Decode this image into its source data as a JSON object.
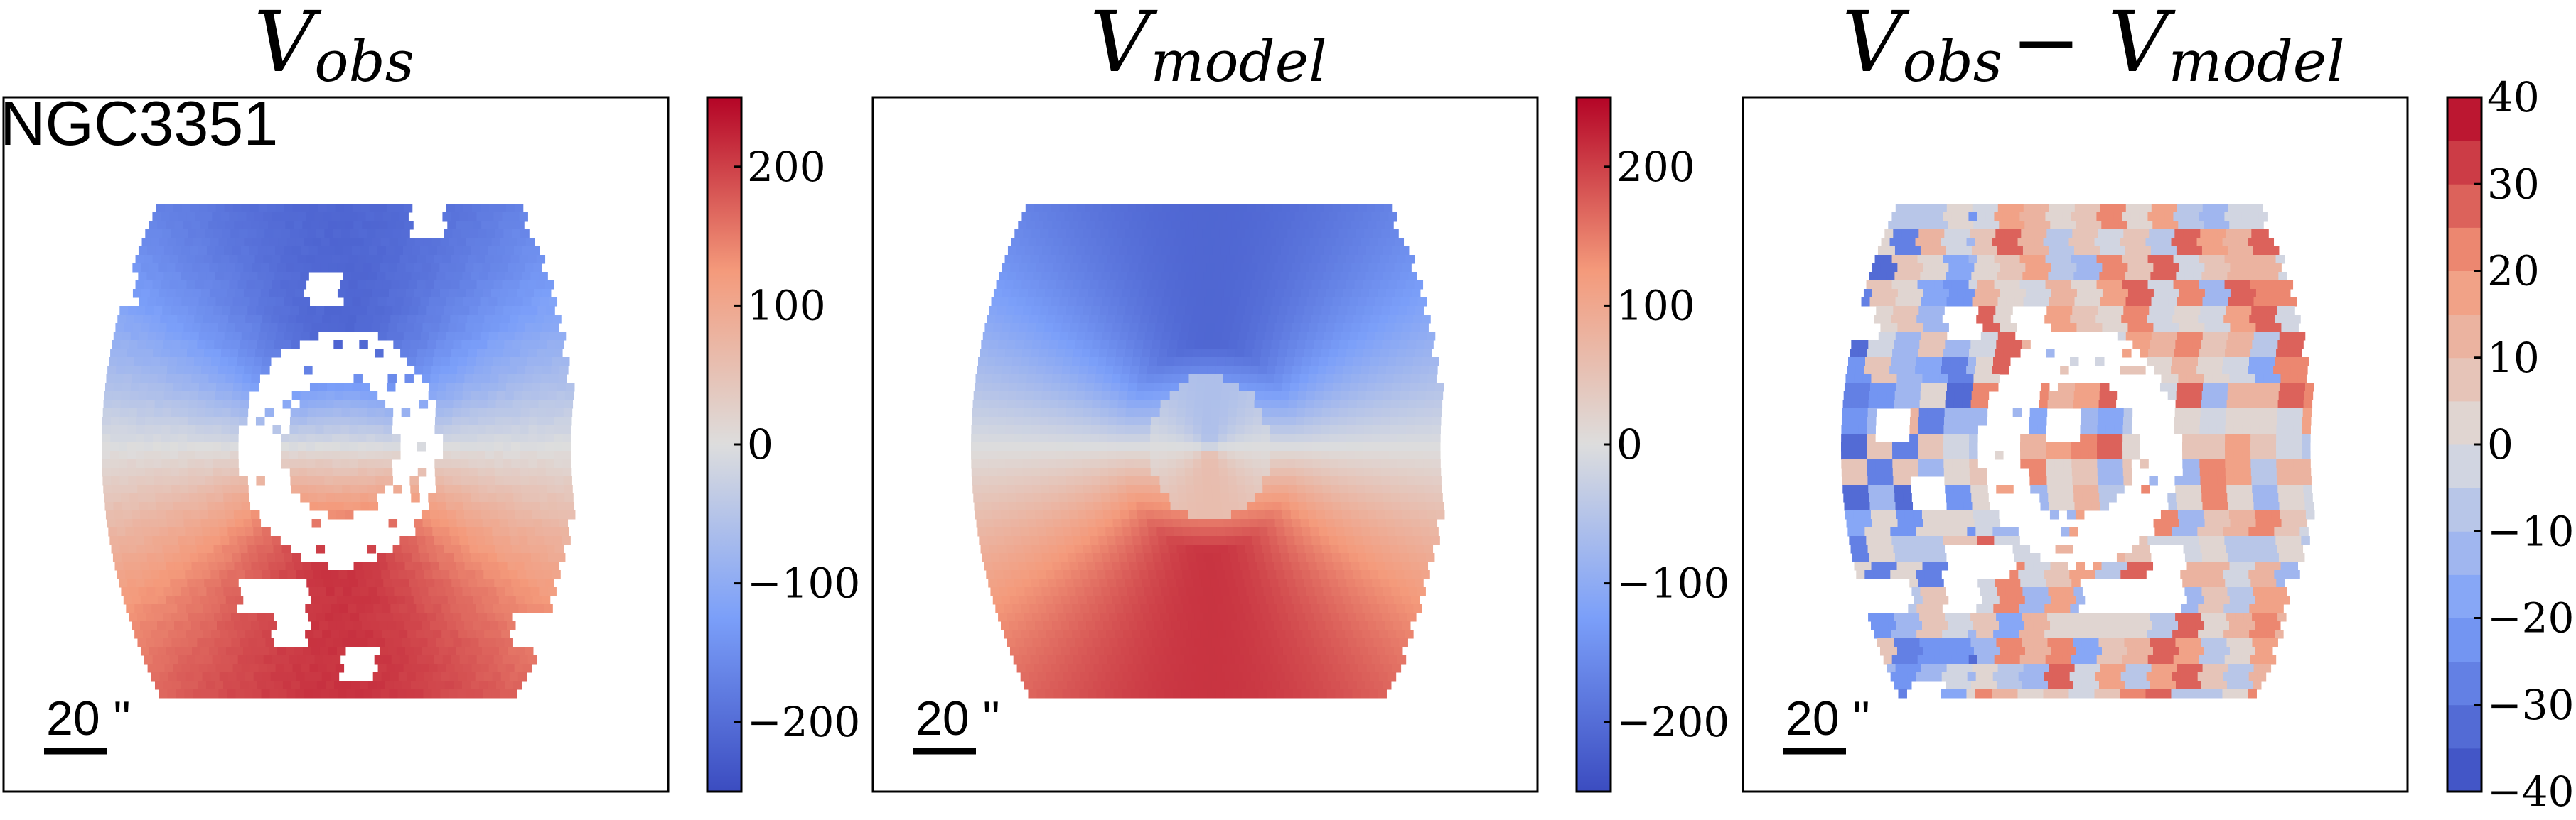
{
  "chart_data": [
    {
      "type": "heatmap",
      "title_main": "V",
      "title_sub": "obs",
      "title_extra": "",
      "galaxy_label": "NGC3351",
      "scale_bar": {
        "value": "20",
        "unit": "\""
      },
      "colorbar": {
        "range": [
          -250,
          250
        ],
        "ticks": [
          -200,
          -100,
          0,
          100,
          200
        ],
        "tick_labels": [
          "−200",
          "−100",
          "0",
          "100",
          "200"
        ],
        "discrete": false
      },
      "field": {
        "amplitude": 210,
        "ring_hole": true,
        "noise": 0.08,
        "gaps": true
      }
    },
    {
      "type": "heatmap",
      "title_main": "V",
      "title_sub": "model",
      "title_extra": "",
      "galaxy_label": "",
      "scale_bar": {
        "value": "20",
        "unit": "\""
      },
      "colorbar": {
        "range": [
          -250,
          250
        ],
        "ticks": [
          -200,
          -100,
          0,
          100,
          200
        ],
        "tick_labels": [
          "−200",
          "−100",
          "0",
          "100",
          "200"
        ],
        "discrete": false
      },
      "field": {
        "amplitude": 210,
        "ring_hole": false,
        "noise": 0.0,
        "gaps": false
      }
    },
    {
      "type": "heatmap",
      "title_main": "V",
      "title_sub": "obs",
      "title_extra": "− V",
      "title_sub2": "model",
      "galaxy_label": "",
      "scale_bar": {
        "value": "20",
        "unit": "\""
      },
      "colorbar": {
        "range": [
          -40,
          40
        ],
        "ticks": [
          -40,
          -30,
          -20,
          -10,
          0,
          10,
          20,
          30,
          40
        ],
        "tick_labels": [
          "−40",
          "−30",
          "−20",
          "−10",
          "0",
          "10",
          "20",
          "30",
          "40"
        ],
        "discrete": true,
        "levels": 16
      },
      "field": {
        "amplitude": 25,
        "ring_hole": true,
        "noise": 1.0,
        "gaps": true
      }
    }
  ],
  "colormap": "coolwarm"
}
